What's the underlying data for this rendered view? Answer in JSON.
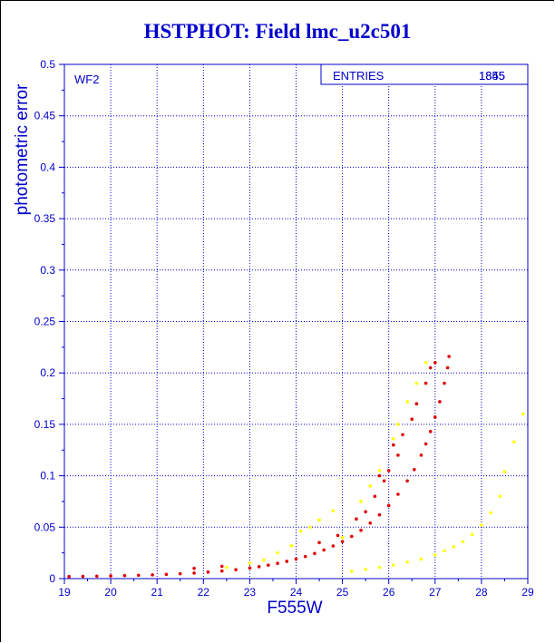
{
  "title": "HSTPHOT: Field lmc_u2c501",
  "chart_data": {
    "type": "scatter",
    "title": "HSTPHOT: Field lmc_u2c501",
    "panel_label": "WF2",
    "xlabel": "F555W",
    "ylabel": "photometric error",
    "xlim": [
      19,
      29
    ],
    "ylim": [
      0,
      0.5
    ],
    "x_ticks": [
      "19",
      "20",
      "21",
      "22",
      "23",
      "24",
      "25",
      "26",
      "27",
      "28",
      "29"
    ],
    "y_ticks": [
      "0",
      "0.05",
      "0.1",
      "0.15",
      "0.2",
      "0.25",
      "0.3",
      "0.35",
      "0.4",
      "0.45",
      "0.5"
    ],
    "grid": true,
    "stats_box": {
      "label": "ENTRIES",
      "value_a": "1845",
      "value_b": "1855"
    },
    "colors": {
      "axis": "#0000cc",
      "main": "#e00000",
      "main_dark": "#aa0000",
      "secondary": "#ffff00",
      "secondary_alt": "#ffb400"
    },
    "series": [
      {
        "color": "#e00000",
        "points": [
          [
            19.1,
            0.002
          ],
          [
            19.4,
            0.0022
          ],
          [
            19.7,
            0.0024
          ],
          [
            20.0,
            0.0026
          ],
          [
            20.3,
            0.0029
          ],
          [
            20.6,
            0.0032
          ],
          [
            20.9,
            0.0036
          ],
          [
            21.2,
            0.0041
          ],
          [
            21.5,
            0.0047
          ],
          [
            21.8,
            0.0054
          ],
          [
            22.1,
            0.0063
          ],
          [
            22.4,
            0.0074
          ],
          [
            22.7,
            0.0087
          ],
          [
            23.0,
            0.0103
          ],
          [
            23.2,
            0.0116
          ],
          [
            23.4,
            0.0131
          ],
          [
            23.6,
            0.0148
          ],
          [
            23.8,
            0.0168
          ],
          [
            24.0,
            0.019
          ],
          [
            24.2,
            0.0215
          ],
          [
            24.4,
            0.0244
          ],
          [
            24.6,
            0.0278
          ],
          [
            24.8,
            0.0317
          ],
          [
            25.0,
            0.036
          ],
          [
            25.2,
            0.041
          ],
          [
            25.4,
            0.047
          ],
          [
            25.6,
            0.054
          ],
          [
            25.8,
            0.062
          ],
          [
            26.0,
            0.071
          ],
          [
            26.2,
            0.082
          ],
          [
            26.4,
            0.095
          ],
          [
            26.55,
            0.106
          ],
          [
            26.7,
            0.12
          ],
          [
            26.8,
            0.131
          ],
          [
            26.9,
            0.143
          ],
          [
            27.0,
            0.157
          ],
          [
            27.1,
            0.172
          ],
          [
            27.2,
            0.19
          ],
          [
            27.27,
            0.205
          ],
          [
            27.3,
            0.216
          ],
          [
            25.3,
            0.058
          ],
          [
            25.5,
            0.065
          ],
          [
            25.7,
            0.08
          ],
          [
            25.9,
            0.095
          ],
          [
            26.0,
            0.105
          ],
          [
            26.2,
            0.12
          ],
          [
            26.3,
            0.14
          ],
          [
            26.5,
            0.155
          ],
          [
            26.6,
            0.17
          ],
          [
            26.8,
            0.19
          ],
          [
            26.9,
            0.205
          ],
          [
            27.0,
            0.21
          ],
          [
            26.1,
            0.13
          ],
          [
            25.8,
            0.1
          ],
          [
            24.5,
            0.035
          ],
          [
            24.9,
            0.042
          ],
          [
            22.4,
            0.012
          ],
          [
            21.8,
            0.01
          ]
        ]
      },
      {
        "color": "#ffff00",
        "points": [
          [
            25.2,
            0.007
          ],
          [
            25.5,
            0.009
          ],
          [
            25.8,
            0.011
          ],
          [
            26.1,
            0.013
          ],
          [
            26.4,
            0.016
          ],
          [
            26.7,
            0.019
          ],
          [
            27.0,
            0.023
          ],
          [
            27.2,
            0.027
          ],
          [
            27.4,
            0.031
          ],
          [
            27.6,
            0.036
          ],
          [
            27.8,
            0.043
          ],
          [
            28.0,
            0.052
          ],
          [
            28.2,
            0.064
          ],
          [
            28.4,
            0.08
          ],
          [
            28.5,
            0.104
          ],
          [
            28.7,
            0.133
          ],
          [
            28.9,
            0.16
          ],
          [
            23.3,
            0.018
          ],
          [
            23.6,
            0.025
          ],
          [
            23.9,
            0.032
          ],
          [
            24.1,
            0.046
          ],
          [
            24.3,
            0.05
          ],
          [
            24.5,
            0.057
          ],
          [
            24.8,
            0.066
          ],
          [
            25.0,
            0.04
          ],
          [
            25.4,
            0.075
          ],
          [
            25.6,
            0.09
          ],
          [
            25.8,
            0.105
          ],
          [
            26.1,
            0.136
          ],
          [
            26.4,
            0.172
          ],
          [
            26.6,
            0.19
          ],
          [
            26.8,
            0.21
          ],
          [
            26.2,
            0.15
          ],
          [
            22.5,
            0.011
          ],
          [
            23.0,
            0.015
          ]
        ]
      }
    ]
  }
}
